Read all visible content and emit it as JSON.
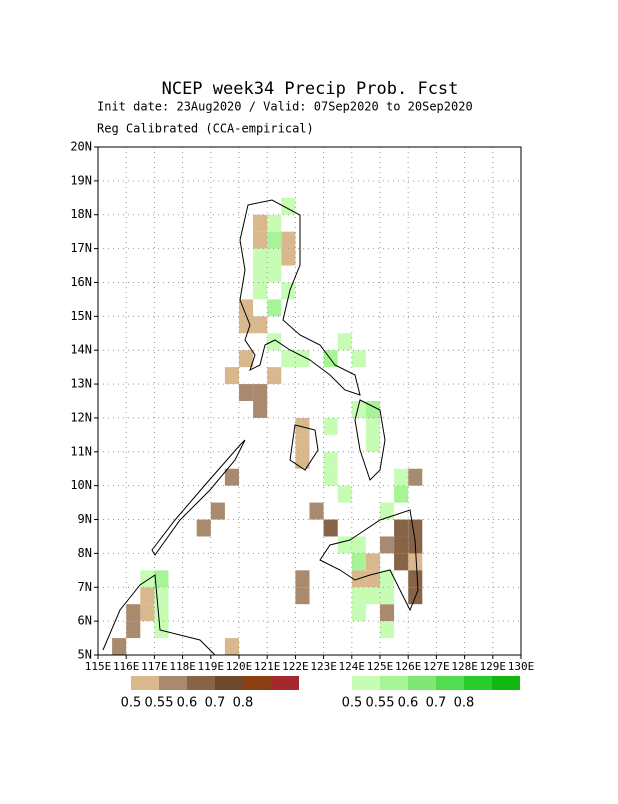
{
  "title": "NCEP week34 Precip Prob. Fcst",
  "subtitle": "Init date: 23Aug2020 / Valid: 07Sep2020 to 20Sep2020",
  "note": "Reg Calibrated (CCA-empirical)",
  "map": {
    "xlim": [
      115,
      130
    ],
    "ylim": [
      5,
      20
    ],
    "grid": true,
    "xticks": [
      {
        "value": 115,
        "label": "115E"
      },
      {
        "value": 116,
        "label": "116E"
      },
      {
        "value": 117,
        "label": "117E"
      },
      {
        "value": 118,
        "label": "118E"
      },
      {
        "value": 119,
        "label": "119E"
      },
      {
        "value": 120,
        "label": "120E"
      },
      {
        "value": 121,
        "label": "121E"
      },
      {
        "value": 122,
        "label": "122E"
      },
      {
        "value": 123,
        "label": "123E"
      },
      {
        "value": 124,
        "label": "124E"
      },
      {
        "value": 125,
        "label": "125E"
      },
      {
        "value": 126,
        "label": "126E"
      },
      {
        "value": 127,
        "label": "127E"
      },
      {
        "value": 128,
        "label": "128E"
      },
      {
        "value": 129,
        "label": "129E"
      },
      {
        "value": 130,
        "label": "130E"
      }
    ],
    "yticks": [
      {
        "value": 5,
        "label": "5N"
      },
      {
        "value": 6,
        "label": "6N"
      },
      {
        "value": 7,
        "label": "7N"
      },
      {
        "value": 8,
        "label": "8N"
      },
      {
        "value": 9,
        "label": "9N"
      },
      {
        "value": 10,
        "label": "10N"
      },
      {
        "value": 11,
        "label": "11N"
      },
      {
        "value": 12,
        "label": "12N"
      },
      {
        "value": 13,
        "label": "13N"
      },
      {
        "value": 14,
        "label": "14N"
      },
      {
        "value": 15,
        "label": "15N"
      },
      {
        "value": 16,
        "label": "16N"
      },
      {
        "value": 17,
        "label": "17N"
      },
      {
        "value": 18,
        "label": "18N"
      },
      {
        "value": 19,
        "label": "19N"
      },
      {
        "value": 20,
        "label": "20N"
      }
    ],
    "below_cells": [
      [
        120.5,
        17.5,
        0.5
      ],
      [
        120.5,
        17,
        0.5
      ],
      [
        121.5,
        16.5,
        0.5
      ],
      [
        121.5,
        17,
        0.5
      ],
      [
        120,
        14.5,
        0.5
      ],
      [
        120.5,
        14.5,
        0.5
      ],
      [
        120,
        15,
        0.5
      ],
      [
        119.5,
        13,
        0.5
      ],
      [
        121,
        13,
        0.5
      ],
      [
        120,
        13.5,
        0.5
      ],
      [
        122,
        10.5,
        0.5
      ],
      [
        122,
        11,
        0.5
      ],
      [
        122,
        11.5,
        0.5
      ],
      [
        124.5,
        7.5,
        0.5
      ],
      [
        124,
        7,
        0.5
      ],
      [
        124.5,
        7,
        0.5
      ],
      [
        126,
        7.5,
        0.5
      ],
      [
        119.5,
        5,
        0.5
      ],
      [
        116.5,
        6.5,
        0.5
      ],
      [
        116.5,
        6,
        0.5
      ],
      [
        120,
        12.5,
        0.55
      ],
      [
        120.5,
        12.5,
        0.55
      ],
      [
        120.5,
        12,
        0.55
      ],
      [
        122.5,
        9,
        0.55
      ],
      [
        122,
        7,
        0.55
      ],
      [
        122,
        6.5,
        0.55
      ],
      [
        125,
        8,
        0.55
      ],
      [
        125,
        6,
        0.55
      ],
      [
        116,
        6,
        0.55
      ],
      [
        115.5,
        5,
        0.55
      ],
      [
        126,
        10,
        0.55
      ],
      [
        116,
        5.5,
        0.55
      ],
      [
        119,
        9,
        0.55
      ],
      [
        118.5,
        8.5,
        0.55
      ],
      [
        119.5,
        10,
        0.55
      ],
      [
        123,
        8.5,
        0.6
      ],
      [
        125.5,
        8.5,
        0.6
      ],
      [
        126,
        8.5,
        0.6
      ],
      [
        125.5,
        8,
        0.6
      ],
      [
        126,
        8,
        0.6
      ],
      [
        125.5,
        7.5,
        0.6
      ],
      [
        126,
        6.5,
        0.6
      ],
      [
        126,
        7,
        0.6
      ]
    ],
    "above_cells": [
      [
        120.5,
        16,
        0.5
      ],
      [
        121,
        16,
        0.5
      ],
      [
        120.5,
        15.5,
        0.5
      ],
      [
        121.5,
        15.5,
        0.5
      ],
      [
        121,
        16.5,
        0.5
      ],
      [
        120.5,
        16.5,
        0.5
      ],
      [
        121,
        17.5,
        0.5
      ],
      [
        121.5,
        18,
        0.5
      ],
      [
        121,
        14,
        0.5
      ],
      [
        121.5,
        13.5,
        0.5
      ],
      [
        122,
        13.5,
        0.5
      ],
      [
        124,
        13.5,
        0.5
      ],
      [
        123.5,
        14,
        0.5
      ],
      [
        124,
        12,
        0.5
      ],
      [
        124.5,
        11.5,
        0.5
      ],
      [
        124.5,
        11,
        0.5
      ],
      [
        123,
        11.5,
        0.5
      ],
      [
        123,
        10.5,
        0.5
      ],
      [
        123,
        10,
        0.5
      ],
      [
        123.5,
        9.5,
        0.5
      ],
      [
        123.5,
        8,
        0.5
      ],
      [
        124,
        8,
        0.5
      ],
      [
        124,
        6.5,
        0.5
      ],
      [
        124,
        6,
        0.5
      ],
      [
        124.5,
        6.5,
        0.5
      ],
      [
        125,
        7,
        0.5
      ],
      [
        125,
        6.5,
        0.5
      ],
      [
        125,
        5.5,
        0.5
      ],
      [
        125.5,
        10,
        0.5
      ],
      [
        125,
        9,
        0.5
      ],
      [
        116.5,
        7,
        0.5
      ],
      [
        117,
        5.5,
        0.5
      ],
      [
        117,
        6,
        0.5
      ],
      [
        117,
        6.5,
        0.5
      ],
      [
        121,
        17,
        0.55
      ],
      [
        121,
        15,
        0.55
      ],
      [
        123,
        13.5,
        0.55
      ],
      [
        124.5,
        12,
        0.55
      ],
      [
        125.5,
        9.5,
        0.55
      ],
      [
        124,
        7.5,
        0.55
      ],
      [
        117,
        7,
        0.55
      ]
    ]
  },
  "legend_below": {
    "breaks": [
      0.5,
      0.55,
      0.6,
      0.7,
      0.8
    ],
    "colors": [
      "#d8b88c",
      "#a98a6e",
      "#876446",
      "#6e4a2c",
      "#8b3f12",
      "#a5282c"
    ]
  },
  "legend_above": {
    "breaks": [
      0.5,
      0.55,
      0.6,
      0.7,
      0.8
    ],
    "colors": [
      "#c6fcb4",
      "#a6f496",
      "#7ee872",
      "#52dc52",
      "#2acc2a",
      "#10b810"
    ]
  }
}
